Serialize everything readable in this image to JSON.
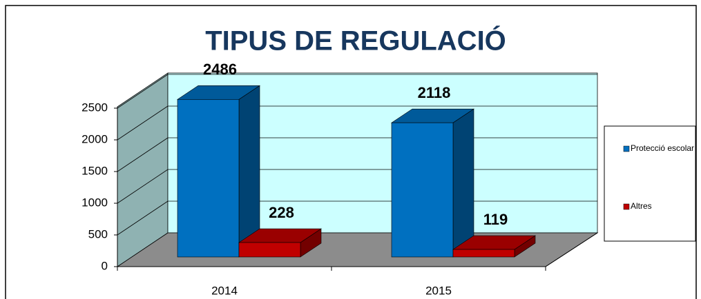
{
  "chart_data": {
    "type": "bar3d",
    "title": "TIPUS DE REGULACIÓ",
    "categories": [
      "2014",
      "2015"
    ],
    "series": [
      {
        "name": "Protecció escolar",
        "color": "#0070c0",
        "values": [
          2486,
          2118
        ]
      },
      {
        "name": "Altres",
        "color": "#c00000",
        "values": [
          228,
          119
        ]
      }
    ],
    "ylim": [
      0,
      2500
    ],
    "yticks": [
      0,
      500,
      1000,
      1500,
      2000,
      2500
    ],
    "grid": true,
    "legend": "right"
  }
}
